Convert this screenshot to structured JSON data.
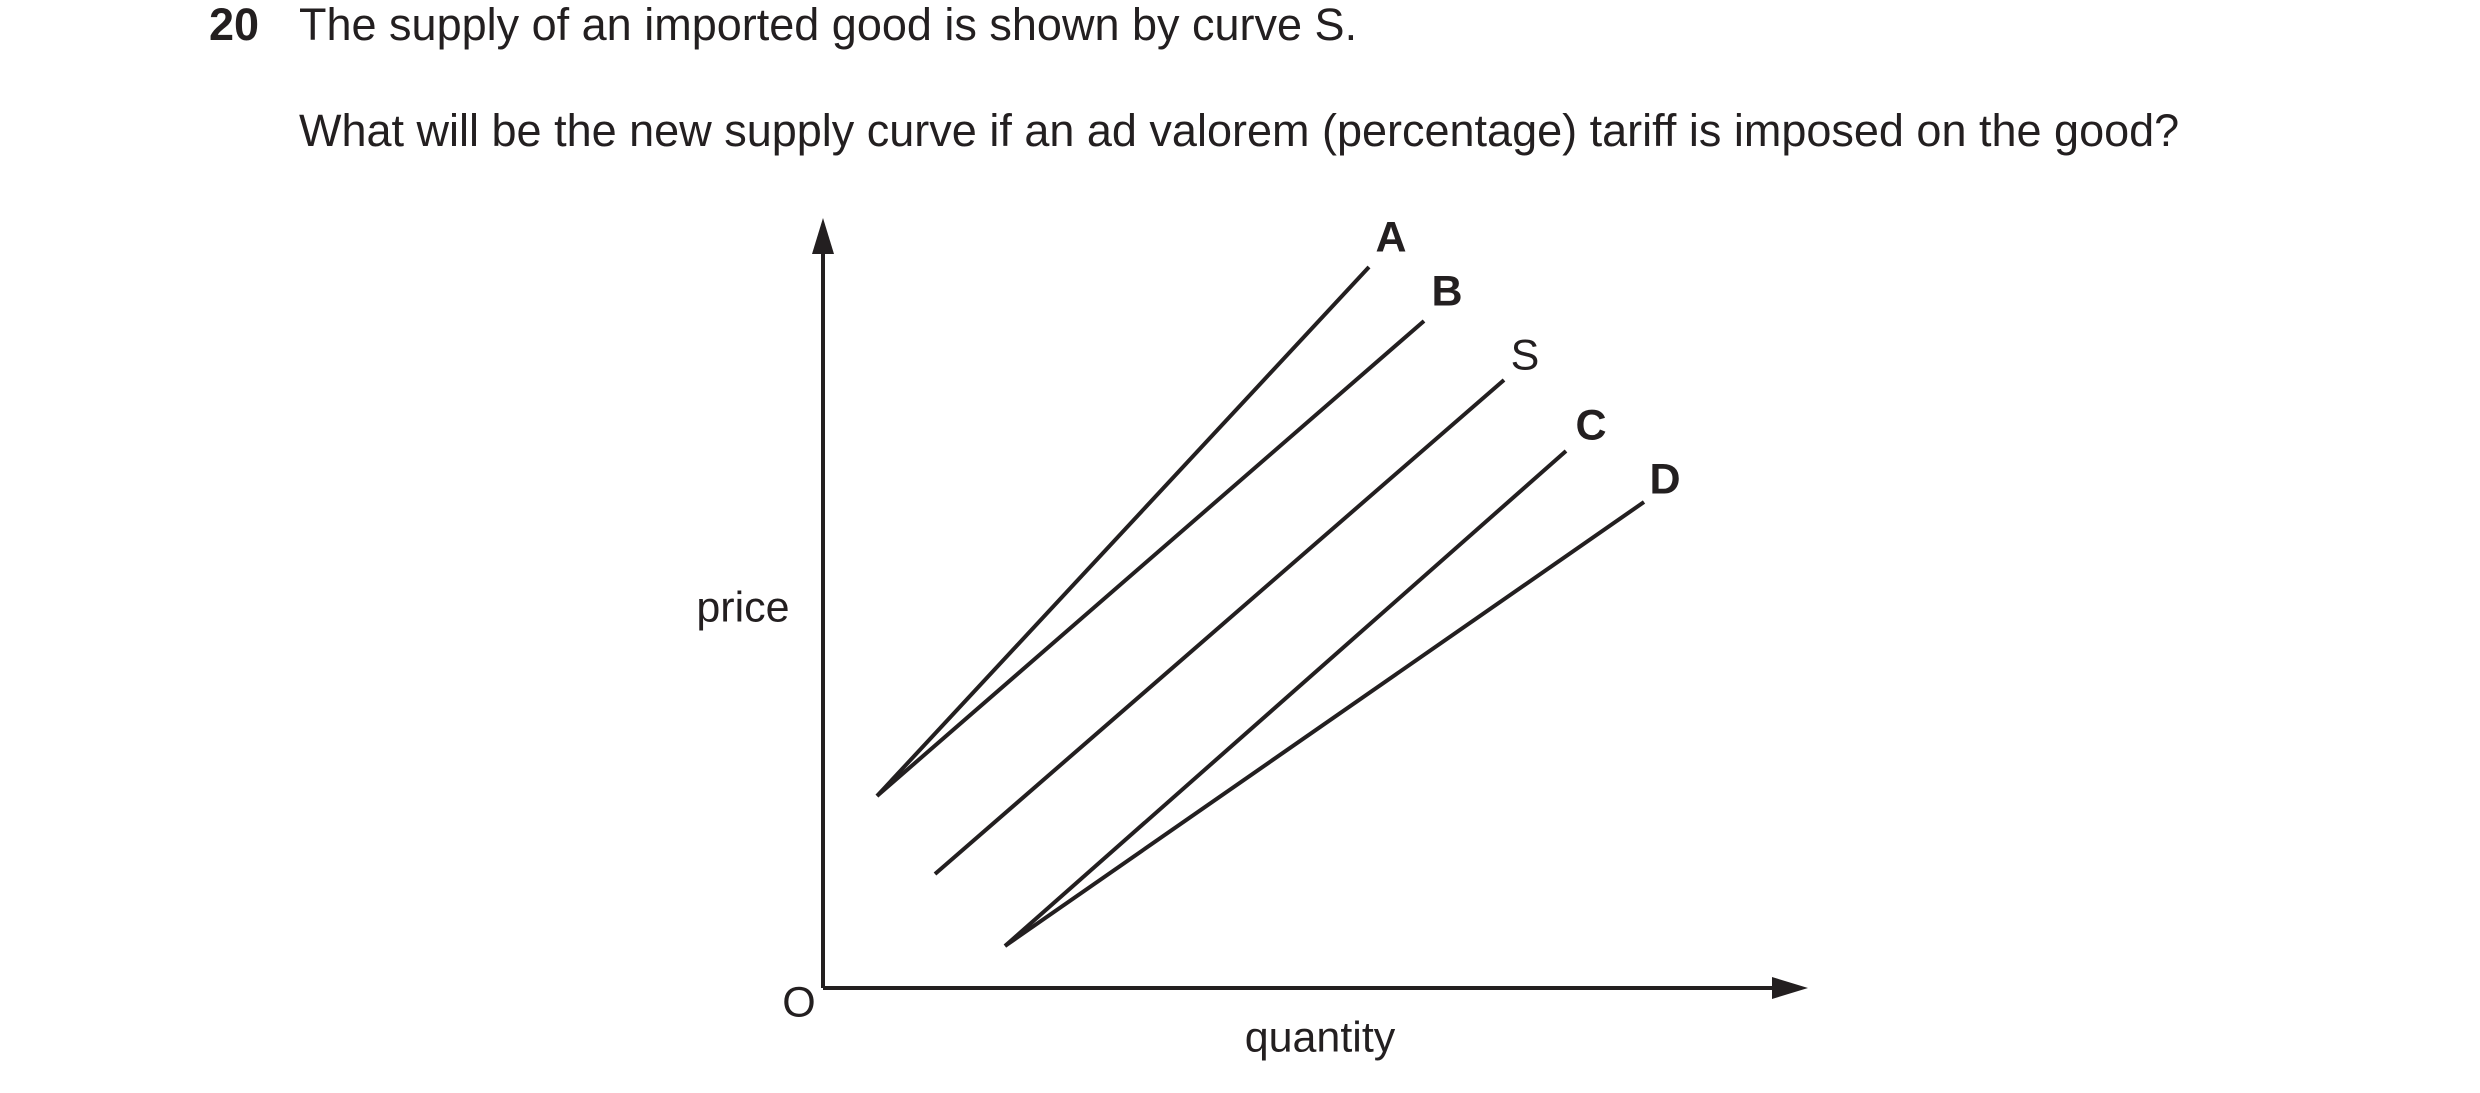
{
  "question": {
    "number": "20",
    "stem": "The supply of an imported good is shown by curve S.",
    "prompt": "What will be the new supply curve if an ad valorem (percentage) tariff is imposed on the good?"
  },
  "diagram": {
    "y_axis_label": "price",
    "x_axis_label": "quantity",
    "origin_label": "O",
    "curve_labels": [
      "A",
      "B",
      "S",
      "C",
      "D"
    ]
  }
}
